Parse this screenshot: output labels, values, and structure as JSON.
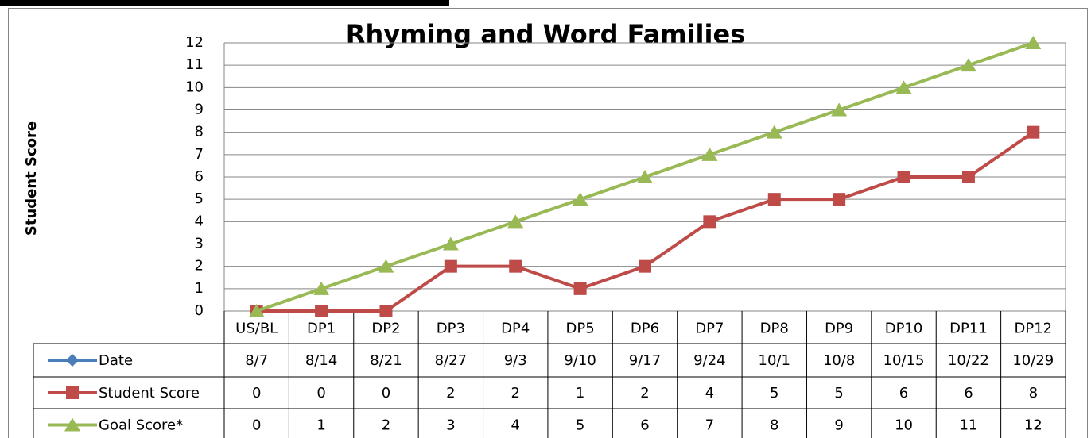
{
  "chart_data": {
    "type": "line",
    "title": "Rhyming and Word Families",
    "ylabel": "Student  Score",
    "categories": [
      "US/BL",
      "DP1",
      "DP2",
      "DP3",
      "DP4",
      "DP5",
      "DP6",
      "DP7",
      "DP8",
      "DP9",
      "DP10",
      "DP11",
      "DP12"
    ],
    "series": [
      {
        "name": "Date",
        "color": "#4a7ebb",
        "marker": "diamond",
        "values": [
          "8/7",
          "8/14",
          "8/21",
          "8/27",
          "9/3",
          "9/10",
          "9/17",
          "9/24",
          "10/1",
          "10/8",
          "10/15",
          "10/22",
          "10/29"
        ]
      },
      {
        "name": "Student Score",
        "color": "#be4b48",
        "marker": "square",
        "values": [
          0,
          0,
          0,
          2,
          2,
          1,
          2,
          4,
          5,
          5,
          6,
          6,
          8
        ]
      },
      {
        "name": "Goal Score*",
        "color": "#98b954",
        "marker": "triangle",
        "values": [
          0,
          1,
          2,
          3,
          4,
          5,
          6,
          7,
          8,
          9,
          10,
          11,
          12
        ]
      }
    ],
    "ylim": [
      0,
      12
    ],
    "yticks": [
      0,
      1,
      2,
      3,
      4,
      5,
      6,
      7,
      8,
      9,
      10,
      11,
      12
    ],
    "grid": true
  }
}
